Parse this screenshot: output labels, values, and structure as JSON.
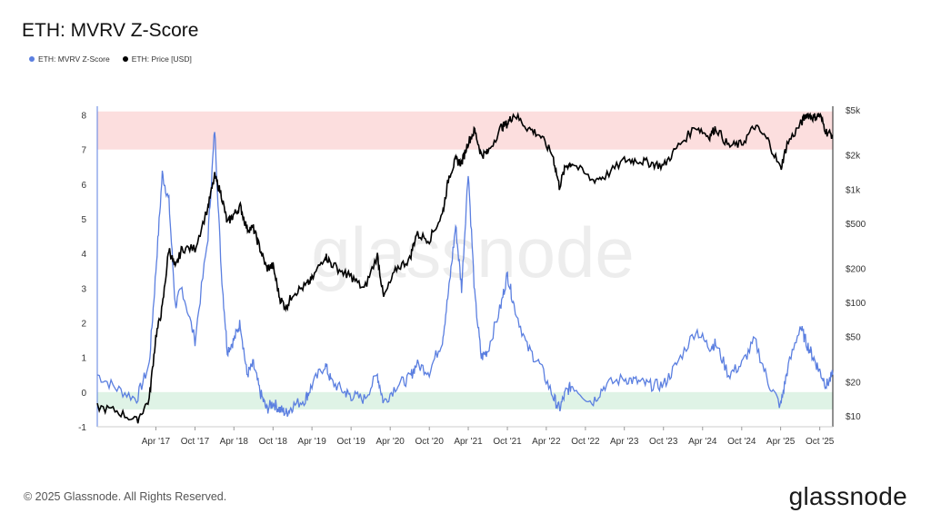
{
  "title": "ETH: MVRV Z-Score",
  "footer": {
    "copyright": "© 2025 Glassnode. All Rights Reserved.",
    "brand": "glassnode"
  },
  "watermark": "glassnode",
  "colors": {
    "zscore": "#5b7fe0",
    "price": "#000000",
    "top_band": "#fcdede",
    "bottom_band": "#dff3e6"
  },
  "chart_data": {
    "type": "line",
    "title": "ETH: MVRV Z-Score",
    "legend": [
      "ETH: MVRV Z-Score",
      "ETH: Price [USD]"
    ],
    "legend_position": "top-left",
    "grid": false,
    "x_ticks": [
      "Apr '17",
      "Oct '17",
      "Apr '18",
      "Oct '18",
      "Apr '19",
      "Oct '19",
      "Apr '20",
      "Oct '20",
      "Apr '21",
      "Oct '21",
      "Apr '22",
      "Oct '22",
      "Apr '23",
      "Oct '23",
      "Apr '24",
      "Oct '24",
      "Apr '25",
      "Oct '25"
    ],
    "y_left": {
      "ticks": [
        "-1",
        "0",
        "1",
        "2",
        "3",
        "4",
        "5",
        "6",
        "7",
        "8"
      ],
      "range": [
        -1,
        8
      ]
    },
    "y_right": {
      "scale": "log",
      "ticks": [
        "$10",
        "$20",
        "$50",
        "$100",
        "$200",
        "$500",
        "$1k",
        "$2k",
        "$5k"
      ],
      "range": [
        8,
        5000
      ]
    },
    "bands": [
      {
        "name": "high",
        "axis": "left",
        "from": 7,
        "to": 8.1
      },
      {
        "name": "low",
        "axis": "left",
        "from": -0.5,
        "to": 0
      }
    ],
    "x": [
      "2016-07",
      "2016-10",
      "2017-01",
      "2017-03",
      "2017-04",
      "2017-05",
      "2017-06",
      "2017-07",
      "2017-08",
      "2017-10",
      "2017-12",
      "2018-01",
      "2018-02",
      "2018-03",
      "2018-04",
      "2018-05",
      "2018-06",
      "2018-07",
      "2018-08",
      "2018-09",
      "2018-10",
      "2018-11",
      "2018-12",
      "2019-01",
      "2019-03",
      "2019-04",
      "2019-06",
      "2019-07",
      "2019-09",
      "2019-10",
      "2019-12",
      "2020-02",
      "2020-03",
      "2020-05",
      "2020-07",
      "2020-08",
      "2020-10",
      "2020-12",
      "2021-01",
      "2021-02",
      "2021-03",
      "2021-04",
      "2021-05",
      "2021-06",
      "2021-07",
      "2021-09",
      "2021-10",
      "2021-11",
      "2022-01",
      "2022-03",
      "2022-05",
      "2022-06",
      "2022-07",
      "2022-08",
      "2022-11",
      "2023-01",
      "2023-04",
      "2023-06",
      "2023-08",
      "2023-10",
      "2023-12",
      "2024-03",
      "2024-05",
      "2024-06",
      "2024-08",
      "2024-10",
      "2024-12",
      "2025-02",
      "2025-04",
      "2025-05",
      "2025-07",
      "2025-08",
      "2025-09",
      "2025-10",
      "2025-11",
      "2025-12"
    ],
    "series": [
      {
        "name": "ETH: MVRV Z-Score",
        "axis": "left",
        "values": [
          0.5,
          0.1,
          -0.2,
          0.8,
          3.5,
          6.3,
          5.5,
          2.5,
          3.0,
          1.5,
          4.5,
          7.6,
          3.5,
          1.2,
          1.5,
          2.0,
          0.5,
          0.8,
          0.0,
          -0.5,
          -0.3,
          -0.5,
          -0.6,
          -0.4,
          -0.2,
          0.2,
          0.8,
          0.3,
          0.0,
          -0.1,
          -0.2,
          0.5,
          -0.3,
          0.2,
          0.4,
          0.8,
          0.6,
          1.5,
          3.0,
          4.8,
          3.0,
          6.4,
          2.8,
          1.0,
          1.2,
          2.5,
          3.4,
          2.5,
          1.3,
          0.8,
          -0.1,
          -0.5,
          0.0,
          0.2,
          -0.3,
          0.2,
          0.4,
          0.3,
          0.2,
          0.2,
          0.8,
          1.8,
          1.3,
          1.4,
          0.5,
          0.8,
          1.5,
          0.3,
          -0.4,
          0.6,
          1.9,
          1.4,
          1.0,
          0.6,
          0.2,
          0.5
        ]
      },
      {
        "name": "ETH: Price [USD]",
        "axis": "right",
        "values": [
          12,
          11,
          9,
          14,
          50,
          90,
          300,
          200,
          300,
          300,
          700,
          1300,
          900,
          500,
          600,
          700,
          450,
          450,
          300,
          200,
          210,
          110,
          90,
          120,
          140,
          160,
          260,
          220,
          180,
          170,
          130,
          260,
          110,
          200,
          240,
          400,
          360,
          600,
          1300,
          1800,
          1700,
          2600,
          3300,
          2000,
          2100,
          3500,
          3800,
          4600,
          3500,
          3000,
          2000,
          1050,
          1600,
          1700,
          1200,
          1300,
          1800,
          1800,
          1700,
          1600,
          2300,
          3600,
          2900,
          3500,
          2400,
          2500,
          3600,
          2700,
          1500,
          2500,
          3700,
          4600,
          4300,
          4500,
          3200,
          3000
        ]
      }
    ]
  }
}
